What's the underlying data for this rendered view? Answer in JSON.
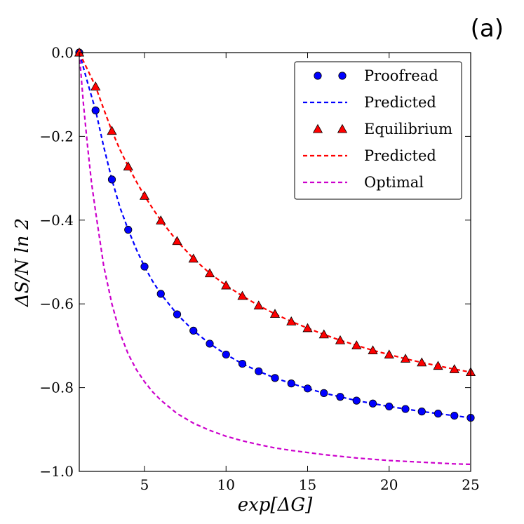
{
  "panel_label": "(a)",
  "chart_data": {
    "type": "line",
    "title": "",
    "xlabel": "exp[ΔG]",
    "ylabel": "ΔS/N ln 2",
    "xlim": [
      1,
      25
    ],
    "ylim": [
      -1.0,
      0.0
    ],
    "x_ticks": [
      5,
      10,
      15,
      20,
      25
    ],
    "y_ticks": [
      0.0,
      -0.2,
      -0.4,
      -0.6,
      -0.8,
      -1.0
    ],
    "x_tick_labels": [
      "5",
      "10",
      "15",
      "20",
      "25"
    ],
    "y_tick_labels": [
      "0.0",
      "−0.2",
      "−0.4",
      "−0.6",
      "−0.8",
      "−1.0"
    ],
    "grid": false,
    "legend_position": "top-right",
    "series": [
      {
        "name": "Proofread",
        "kind": "scatter",
        "marker": "circle",
        "color": "#0000ff",
        "x": [
          1,
          2,
          3,
          4,
          5,
          6,
          7,
          8,
          9,
          10,
          11,
          12,
          13,
          14,
          15,
          16,
          17,
          18,
          19,
          20,
          21,
          22,
          23,
          24,
          25
        ],
        "y": [
          0.0,
          -0.138,
          -0.303,
          -0.423,
          -0.511,
          -0.576,
          -0.625,
          -0.664,
          -0.695,
          -0.721,
          -0.743,
          -0.761,
          -0.777,
          -0.79,
          -0.802,
          -0.813,
          -0.822,
          -0.831,
          -0.838,
          -0.845,
          -0.851,
          -0.857,
          -0.862,
          -0.867,
          -0.872
        ]
      },
      {
        "name": "Predicted",
        "kind": "line",
        "dash": true,
        "color": "#0000ff",
        "x": [
          1,
          1.5,
          2,
          2.5,
          3,
          3.5,
          4,
          4.5,
          5,
          5.5,
          6,
          7,
          8,
          9,
          10,
          11,
          12,
          13,
          14,
          15,
          16,
          17,
          18,
          19,
          20,
          21,
          22,
          23,
          24,
          25
        ],
        "y": [
          0.0,
          -0.07,
          -0.138,
          -0.225,
          -0.303,
          -0.37,
          -0.423,
          -0.47,
          -0.511,
          -0.546,
          -0.576,
          -0.625,
          -0.664,
          -0.695,
          -0.721,
          -0.743,
          -0.761,
          -0.777,
          -0.79,
          -0.802,
          -0.813,
          -0.822,
          -0.831,
          -0.838,
          -0.845,
          -0.851,
          -0.857,
          -0.862,
          -0.867,
          -0.872
        ]
      },
      {
        "name": "Equilibrium",
        "kind": "scatter",
        "marker": "triangle",
        "color": "#ff0000",
        "x": [
          1,
          2,
          3,
          4,
          5,
          6,
          7,
          8,
          9,
          10,
          11,
          12,
          13,
          14,
          15,
          16,
          17,
          18,
          19,
          20,
          21,
          22,
          23,
          24,
          25
        ],
        "y": [
          0.0,
          -0.081,
          -0.187,
          -0.272,
          -0.342,
          -0.401,
          -0.45,
          -0.492,
          -0.527,
          -0.556,
          -0.581,
          -0.604,
          -0.624,
          -0.642,
          -0.658,
          -0.673,
          -0.687,
          -0.699,
          -0.711,
          -0.721,
          -0.731,
          -0.74,
          -0.748,
          -0.756,
          -0.763
        ]
      },
      {
        "name": "Predicted",
        "kind": "line",
        "dash": true,
        "color": "#ff0000",
        "x": [
          1,
          1.5,
          2,
          2.5,
          3,
          3.5,
          4,
          4.5,
          5,
          5.5,
          6,
          7,
          8,
          9,
          10,
          11,
          12,
          13,
          14,
          15,
          16,
          17,
          18,
          19,
          20,
          21,
          22,
          23,
          24,
          25
        ],
        "y": [
          0.0,
          -0.04,
          -0.081,
          -0.135,
          -0.187,
          -0.232,
          -0.272,
          -0.308,
          -0.342,
          -0.372,
          -0.401,
          -0.45,
          -0.492,
          -0.527,
          -0.556,
          -0.581,
          -0.604,
          -0.624,
          -0.642,
          -0.658,
          -0.673,
          -0.687,
          -0.699,
          -0.711,
          -0.721,
          -0.731,
          -0.74,
          -0.748,
          -0.756,
          -0.763
        ]
      },
      {
        "name": "Optimal",
        "kind": "line",
        "dash": true,
        "color": "#cc00cc",
        "x": [
          1,
          1.25,
          1.5,
          1.75,
          2,
          2.5,
          3,
          3.5,
          4,
          4.5,
          5,
          5.5,
          6,
          7,
          8,
          9,
          10,
          11,
          12,
          13,
          14,
          15,
          16,
          17,
          18,
          19,
          20,
          21,
          22,
          23,
          24,
          25
        ],
        "y": [
          0.0,
          -0.12,
          -0.22,
          -0.31,
          -0.38,
          -0.51,
          -0.6,
          -0.67,
          -0.72,
          -0.757,
          -0.786,
          -0.81,
          -0.83,
          -0.862,
          -0.885,
          -0.902,
          -0.916,
          -0.927,
          -0.936,
          -0.944,
          -0.95,
          -0.955,
          -0.96,
          -0.964,
          -0.968,
          -0.971,
          -0.974,
          -0.976,
          -0.978,
          -0.98,
          -0.982,
          -0.983
        ]
      }
    ]
  }
}
